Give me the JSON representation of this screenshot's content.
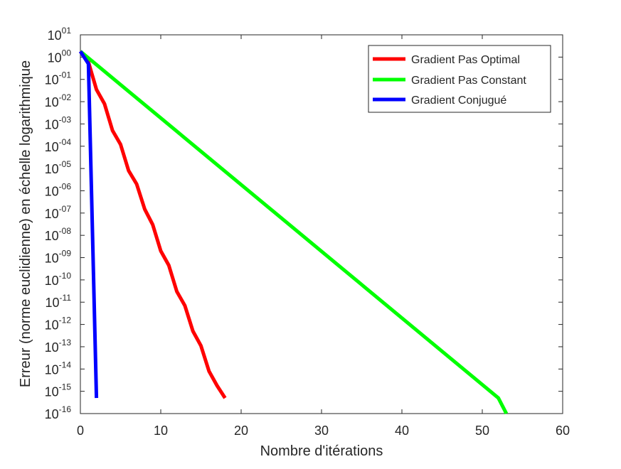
{
  "chart_data": {
    "type": "line",
    "title": "",
    "xlabel": "Nombre d'itérations",
    "ylabel": "Erreur (norme euclidienne) en échelle logarithmique",
    "xscale": "linear",
    "yscale": "log",
    "xlim": [
      0,
      60
    ],
    "ylim": [
      1e-16,
      10
    ],
    "xticks": [
      0,
      10,
      20,
      30,
      40,
      50,
      60
    ],
    "ytick_exponents": [
      "01",
      "00",
      "-01",
      "-02",
      "-03",
      "-04",
      "-05",
      "-06",
      "-07",
      "-08",
      "-09",
      "-10",
      "-11",
      "-12",
      "-13",
      "-14",
      "-15",
      "-16"
    ],
    "ytick_base": "10",
    "grid": false,
    "legend_position": "top-right",
    "series": [
      {
        "name": "Gradient Pas Optimal",
        "color": "#ff0000",
        "x": [
          0,
          1,
          2,
          3,
          4,
          5,
          6,
          7,
          8,
          9,
          10,
          11,
          12,
          13,
          14,
          15,
          16,
          17,
          18
        ],
        "y": [
          1.8,
          0.6,
          0.035,
          0.008,
          0.0005,
          0.00012,
          8e-06,
          2e-06,
          1.5e-07,
          3e-08,
          2e-09,
          4.5e-10,
          3e-11,
          7e-12,
          5e-13,
          1.1e-13,
          8e-15,
          1.8e-15,
          5e-16
        ]
      },
      {
        "name": "Gradient Pas Constant",
        "color": "#00ff00",
        "x": [
          0,
          52,
          53
        ],
        "y": [
          1.8,
          5e-16,
          1e-16
        ]
      },
      {
        "name": "Gradient Conjugué",
        "color": "#0000ff",
        "x": [
          0,
          1,
          2
        ],
        "y": [
          1.8,
          0.5,
          5e-16
        ]
      }
    ]
  }
}
